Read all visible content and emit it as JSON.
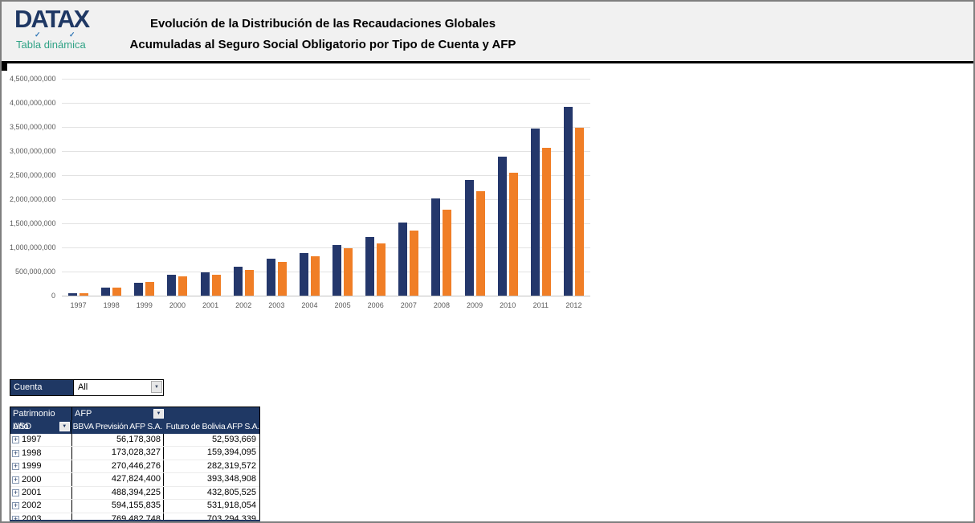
{
  "header": {
    "logo": "DATAX",
    "check_glyph": "✓",
    "logo_subtitle": "Tabla dinámica",
    "title_line1": "Evolución de la Distribución de las Recaudaciones Globales",
    "title_line2": "Acumuladas al Seguro Social Obligatorio por Tipo de Cuenta y AFP"
  },
  "colors": {
    "navy": "#1f3864",
    "bar_navy": "#24376b",
    "bar_orange": "#f07e26",
    "logo_teal": "#2fa285",
    "header_bg": "#f1f1f1"
  },
  "icons": {
    "dropdown_arrow": "▼",
    "expand": "+"
  },
  "chart_data": {
    "type": "bar",
    "title": "",
    "xlabel": "",
    "ylabel": "",
    "categories": [
      "1997",
      "1998",
      "1999",
      "2000",
      "2001",
      "2002",
      "2003",
      "2004",
      "2005",
      "2006",
      "2007",
      "2008",
      "2009",
      "2010",
      "2011",
      "2012"
    ],
    "series": [
      {
        "name": "BBVA Previsión AFP S.A.",
        "color": "#24376b",
        "values": [
          56178308,
          173028327,
          270446276,
          427824400,
          488394225,
          594155835,
          769482748,
          890000000,
          1055000000,
          1215000000,
          1520000000,
          2025000000,
          2400000000,
          2880000000,
          3470000000,
          3910000000
        ]
      },
      {
        "name": "Futuro de Bolivia AFP S.A.",
        "color": "#f07e26",
        "values": [
          52593669,
          159394095,
          282319572,
          393348908,
          432805525,
          531918054,
          703294339,
          810000000,
          985000000,
          1085000000,
          1355000000,
          1780000000,
          2160000000,
          2545000000,
          3075000000,
          3490000000
        ]
      }
    ],
    "ylim": [
      0,
      4500000000
    ],
    "ytick_step": 500000000,
    "grid": true,
    "legend": "none"
  },
  "filter": {
    "label": "Cuenta",
    "value": "All"
  },
  "pivot": {
    "corner_label": "Patrimonio USD",
    "column_field": "AFP",
    "row_field": "Año",
    "columns": [
      "BBVA Previsión AFP S.A.",
      "Futuro de Bolivia AFP S.A."
    ],
    "rows": [
      {
        "year": "1997",
        "values": [
          "56,178,308",
          "52,593,669"
        ]
      },
      {
        "year": "1998",
        "values": [
          "173,028,327",
          "159,394,095"
        ]
      },
      {
        "year": "1999",
        "values": [
          "270,446,276",
          "282,319,572"
        ]
      },
      {
        "year": "2000",
        "values": [
          "427,824,400",
          "393,348,908"
        ]
      },
      {
        "year": "2001",
        "values": [
          "488,394,225",
          "432,805,525"
        ]
      },
      {
        "year": "2002",
        "values": [
          "594,155,835",
          "531,918,054"
        ]
      },
      {
        "year": "2003",
        "values": [
          "769,482,748",
          "703,294,339"
        ]
      }
    ]
  }
}
